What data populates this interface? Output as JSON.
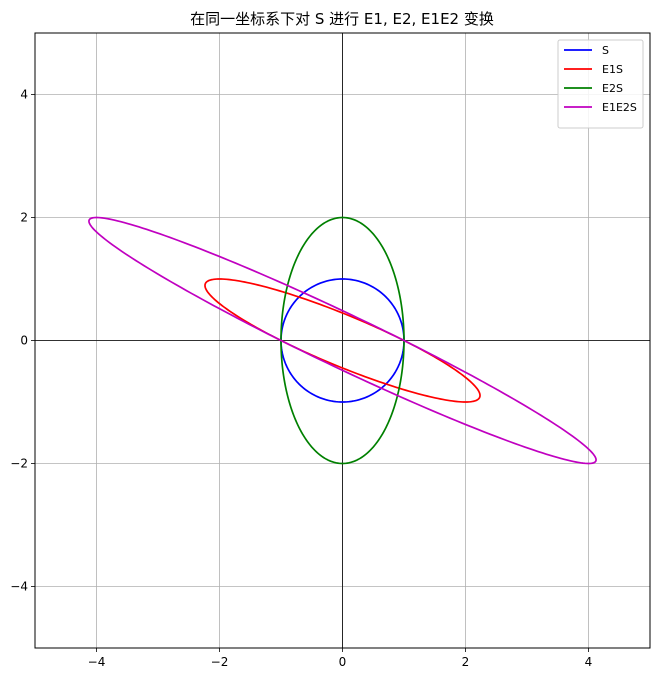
{
  "chart_data": {
    "type": "line",
    "title": "在同一坐标系下对 S 进行 E1, E2, E1E2 变换",
    "xlabel": "",
    "ylabel": "",
    "xlim": [
      -5,
      5
    ],
    "ylim": [
      -5,
      5
    ],
    "xticks": [
      -4,
      -2,
      0,
      2,
      4
    ],
    "yticks": [
      -4,
      -2,
      0,
      2,
      4
    ],
    "xtick_labels": [
      "−4",
      "−2",
      "0",
      "2",
      "4"
    ],
    "ytick_labels": [
      "−4",
      "−2",
      "0",
      "2",
      "4"
    ],
    "grid": true,
    "axis_lines_through_origin": true,
    "legend_position": "top-right",
    "series": [
      {
        "name": "S",
        "color": "#0000ff",
        "curve": "unit circle",
        "points": [
          [
            1,
            0
          ],
          [
            0.707,
            0.707
          ],
          [
            0,
            1
          ],
          [
            -0.707,
            0.707
          ],
          [
            -1,
            0
          ],
          [
            -0.707,
            -0.707
          ],
          [
            0,
            -1
          ],
          [
            0.707,
            -0.707
          ]
        ]
      },
      {
        "name": "E1S",
        "color": "#ff0000",
        "curve": "ellipse",
        "points": [
          [
            1,
            0
          ],
          [
            -1.414,
            0.707
          ],
          [
            -2,
            1
          ],
          [
            -1.414,
            0.707
          ],
          [
            -1,
            0
          ],
          [
            1.414,
            -0.707
          ],
          [
            2,
            -1
          ],
          [
            1.414,
            -0.707
          ]
        ]
      },
      {
        "name": "E2S",
        "color": "#008000",
        "curve": "ellipse",
        "points": [
          [
            1,
            0
          ],
          [
            0.707,
            1.414
          ],
          [
            0,
            2
          ],
          [
            -0.707,
            1.414
          ],
          [
            -1,
            0
          ],
          [
            -0.707,
            -1.414
          ],
          [
            0,
            -2
          ],
          [
            0.707,
            -1.414
          ]
        ]
      },
      {
        "name": "E1E2S",
        "color": "#c000c0",
        "curve": "ellipse",
        "points": [
          [
            1,
            0
          ],
          [
            -2.121,
            1.414
          ],
          [
            -4,
            2
          ],
          [
            -3.536,
            1.414
          ],
          [
            -1,
            0
          ],
          [
            2.121,
            -1.414
          ],
          [
            4,
            -2
          ],
          [
            3.536,
            -1.414
          ]
        ]
      }
    ]
  }
}
